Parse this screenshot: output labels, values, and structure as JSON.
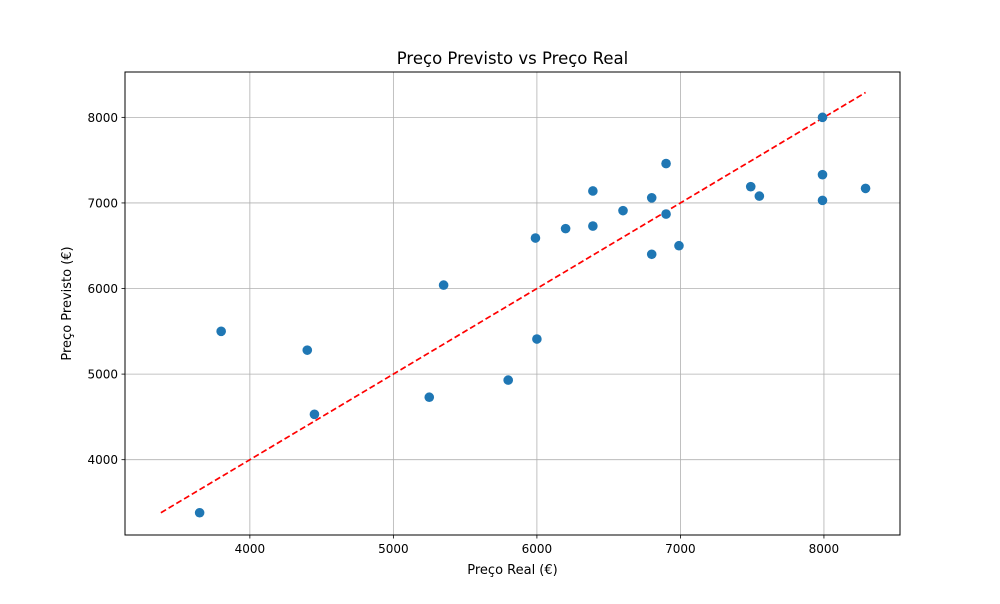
{
  "chart_data": {
    "type": "scatter",
    "title": "Preço Previsto vs Preço Real",
    "xlabel": "Preço Real (€)",
    "ylabel": "Preço Previsto (€)",
    "xlim": [
      3130,
      8530
    ],
    "ylim": [
      3120,
      8530
    ],
    "xticks": [
      4000,
      5000,
      6000,
      7000,
      8000
    ],
    "yticks": [
      4000,
      5000,
      6000,
      7000,
      8000
    ],
    "xtick_labels": [
      "4000",
      "5000",
      "6000",
      "7000",
      "8000"
    ],
    "ytick_labels": [
      "4000",
      "5000",
      "6000",
      "7000",
      "8000"
    ],
    "grid": true,
    "points": [
      {
        "x": 3650,
        "y": 3380
      },
      {
        "x": 3800,
        "y": 5500
      },
      {
        "x": 4400,
        "y": 5280
      },
      {
        "x": 4450,
        "y": 4530
      },
      {
        "x": 5250,
        "y": 4730
      },
      {
        "x": 5350,
        "y": 6040
      },
      {
        "x": 5800,
        "y": 4930
      },
      {
        "x": 5990,
        "y": 6590
      },
      {
        "x": 6000,
        "y": 5410
      },
      {
        "x": 6200,
        "y": 6700
      },
      {
        "x": 6390,
        "y": 7140
      },
      {
        "x": 6390,
        "y": 6730
      },
      {
        "x": 6600,
        "y": 6910
      },
      {
        "x": 6800,
        "y": 7060
      },
      {
        "x": 6800,
        "y": 6400
      },
      {
        "x": 6900,
        "y": 7460
      },
      {
        "x": 6900,
        "y": 6870
      },
      {
        "x": 6990,
        "y": 6500
      },
      {
        "x": 7490,
        "y": 7190
      },
      {
        "x": 7550,
        "y": 7080
      },
      {
        "x": 7990,
        "y": 8000
      },
      {
        "x": 7990,
        "y": 7330
      },
      {
        "x": 7990,
        "y": 7030
      },
      {
        "x": 8290,
        "y": 7170
      }
    ],
    "reference_line": {
      "from": [
        3380,
        3380
      ],
      "to": [
        8290,
        8290
      ],
      "style": "dashed",
      "color": "#ff0000"
    },
    "point_color": "#1f77b4"
  }
}
